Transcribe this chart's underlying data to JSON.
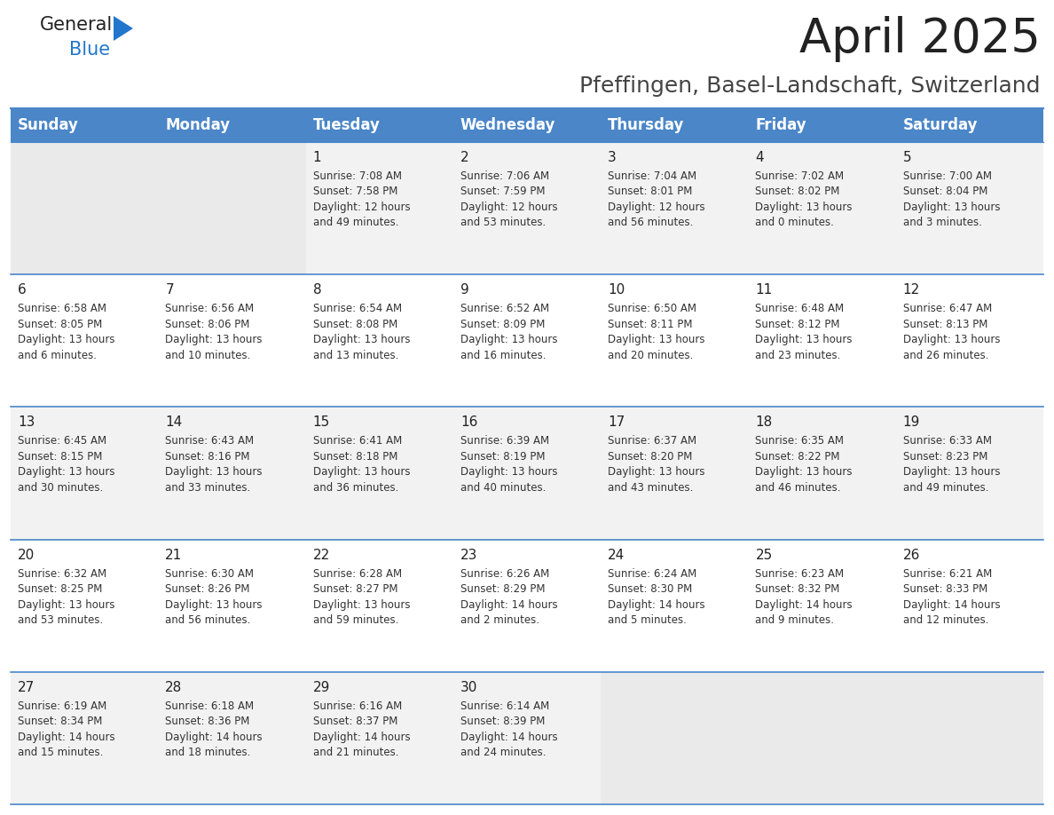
{
  "title": "April 2025",
  "subtitle": "Pfeffingen, Basel-Landschaft, Switzerland",
  "header_color": "#4a86c8",
  "header_text_color": "#ffffff",
  "days_of_week": [
    "Sunday",
    "Monday",
    "Tuesday",
    "Wednesday",
    "Thursday",
    "Friday",
    "Saturday"
  ],
  "weeks": [
    [
      {
        "day": "",
        "info": ""
      },
      {
        "day": "",
        "info": ""
      },
      {
        "day": "1",
        "info": "Sunrise: 7:08 AM\nSunset: 7:58 PM\nDaylight: 12 hours\nand 49 minutes."
      },
      {
        "day": "2",
        "info": "Sunrise: 7:06 AM\nSunset: 7:59 PM\nDaylight: 12 hours\nand 53 minutes."
      },
      {
        "day": "3",
        "info": "Sunrise: 7:04 AM\nSunset: 8:01 PM\nDaylight: 12 hours\nand 56 minutes."
      },
      {
        "day": "4",
        "info": "Sunrise: 7:02 AM\nSunset: 8:02 PM\nDaylight: 13 hours\nand 0 minutes."
      },
      {
        "day": "5",
        "info": "Sunrise: 7:00 AM\nSunset: 8:04 PM\nDaylight: 13 hours\nand 3 minutes."
      }
    ],
    [
      {
        "day": "6",
        "info": "Sunrise: 6:58 AM\nSunset: 8:05 PM\nDaylight: 13 hours\nand 6 minutes."
      },
      {
        "day": "7",
        "info": "Sunrise: 6:56 AM\nSunset: 8:06 PM\nDaylight: 13 hours\nand 10 minutes."
      },
      {
        "day": "8",
        "info": "Sunrise: 6:54 AM\nSunset: 8:08 PM\nDaylight: 13 hours\nand 13 minutes."
      },
      {
        "day": "9",
        "info": "Sunrise: 6:52 AM\nSunset: 8:09 PM\nDaylight: 13 hours\nand 16 minutes."
      },
      {
        "day": "10",
        "info": "Sunrise: 6:50 AM\nSunset: 8:11 PM\nDaylight: 13 hours\nand 20 minutes."
      },
      {
        "day": "11",
        "info": "Sunrise: 6:48 AM\nSunset: 8:12 PM\nDaylight: 13 hours\nand 23 minutes."
      },
      {
        "day": "12",
        "info": "Sunrise: 6:47 AM\nSunset: 8:13 PM\nDaylight: 13 hours\nand 26 minutes."
      }
    ],
    [
      {
        "day": "13",
        "info": "Sunrise: 6:45 AM\nSunset: 8:15 PM\nDaylight: 13 hours\nand 30 minutes."
      },
      {
        "day": "14",
        "info": "Sunrise: 6:43 AM\nSunset: 8:16 PM\nDaylight: 13 hours\nand 33 minutes."
      },
      {
        "day": "15",
        "info": "Sunrise: 6:41 AM\nSunset: 8:18 PM\nDaylight: 13 hours\nand 36 minutes."
      },
      {
        "day": "16",
        "info": "Sunrise: 6:39 AM\nSunset: 8:19 PM\nDaylight: 13 hours\nand 40 minutes."
      },
      {
        "day": "17",
        "info": "Sunrise: 6:37 AM\nSunset: 8:20 PM\nDaylight: 13 hours\nand 43 minutes."
      },
      {
        "day": "18",
        "info": "Sunrise: 6:35 AM\nSunset: 8:22 PM\nDaylight: 13 hours\nand 46 minutes."
      },
      {
        "day": "19",
        "info": "Sunrise: 6:33 AM\nSunset: 8:23 PM\nDaylight: 13 hours\nand 49 minutes."
      }
    ],
    [
      {
        "day": "20",
        "info": "Sunrise: 6:32 AM\nSunset: 8:25 PM\nDaylight: 13 hours\nand 53 minutes."
      },
      {
        "day": "21",
        "info": "Sunrise: 6:30 AM\nSunset: 8:26 PM\nDaylight: 13 hours\nand 56 minutes."
      },
      {
        "day": "22",
        "info": "Sunrise: 6:28 AM\nSunset: 8:27 PM\nDaylight: 13 hours\nand 59 minutes."
      },
      {
        "day": "23",
        "info": "Sunrise: 6:26 AM\nSunset: 8:29 PM\nDaylight: 14 hours\nand 2 minutes."
      },
      {
        "day": "24",
        "info": "Sunrise: 6:24 AM\nSunset: 8:30 PM\nDaylight: 14 hours\nand 5 minutes."
      },
      {
        "day": "25",
        "info": "Sunrise: 6:23 AM\nSunset: 8:32 PM\nDaylight: 14 hours\nand 9 minutes."
      },
      {
        "day": "26",
        "info": "Sunrise: 6:21 AM\nSunset: 8:33 PM\nDaylight: 14 hours\nand 12 minutes."
      }
    ],
    [
      {
        "day": "27",
        "info": "Sunrise: 6:19 AM\nSunset: 8:34 PM\nDaylight: 14 hours\nand 15 minutes."
      },
      {
        "day": "28",
        "info": "Sunrise: 6:18 AM\nSunset: 8:36 PM\nDaylight: 14 hours\nand 18 minutes."
      },
      {
        "day": "29",
        "info": "Sunrise: 6:16 AM\nSunset: 8:37 PM\nDaylight: 14 hours\nand 21 minutes."
      },
      {
        "day": "30",
        "info": "Sunrise: 6:14 AM\nSunset: 8:39 PM\nDaylight: 14 hours\nand 24 minutes."
      },
      {
        "day": "",
        "info": ""
      },
      {
        "day": "",
        "info": ""
      },
      {
        "day": "",
        "info": ""
      }
    ]
  ],
  "cell_bg_white": "#ffffff",
  "cell_bg_gray": "#f2f2f2",
  "divider_color": "#4a86c8",
  "text_color": "#333333",
  "day_number_color": "#222222",
  "info_font_size": 8.5,
  "day_num_font_size": 11,
  "header_font_size": 12,
  "title_fontsize": 38,
  "subtitle_fontsize": 18
}
